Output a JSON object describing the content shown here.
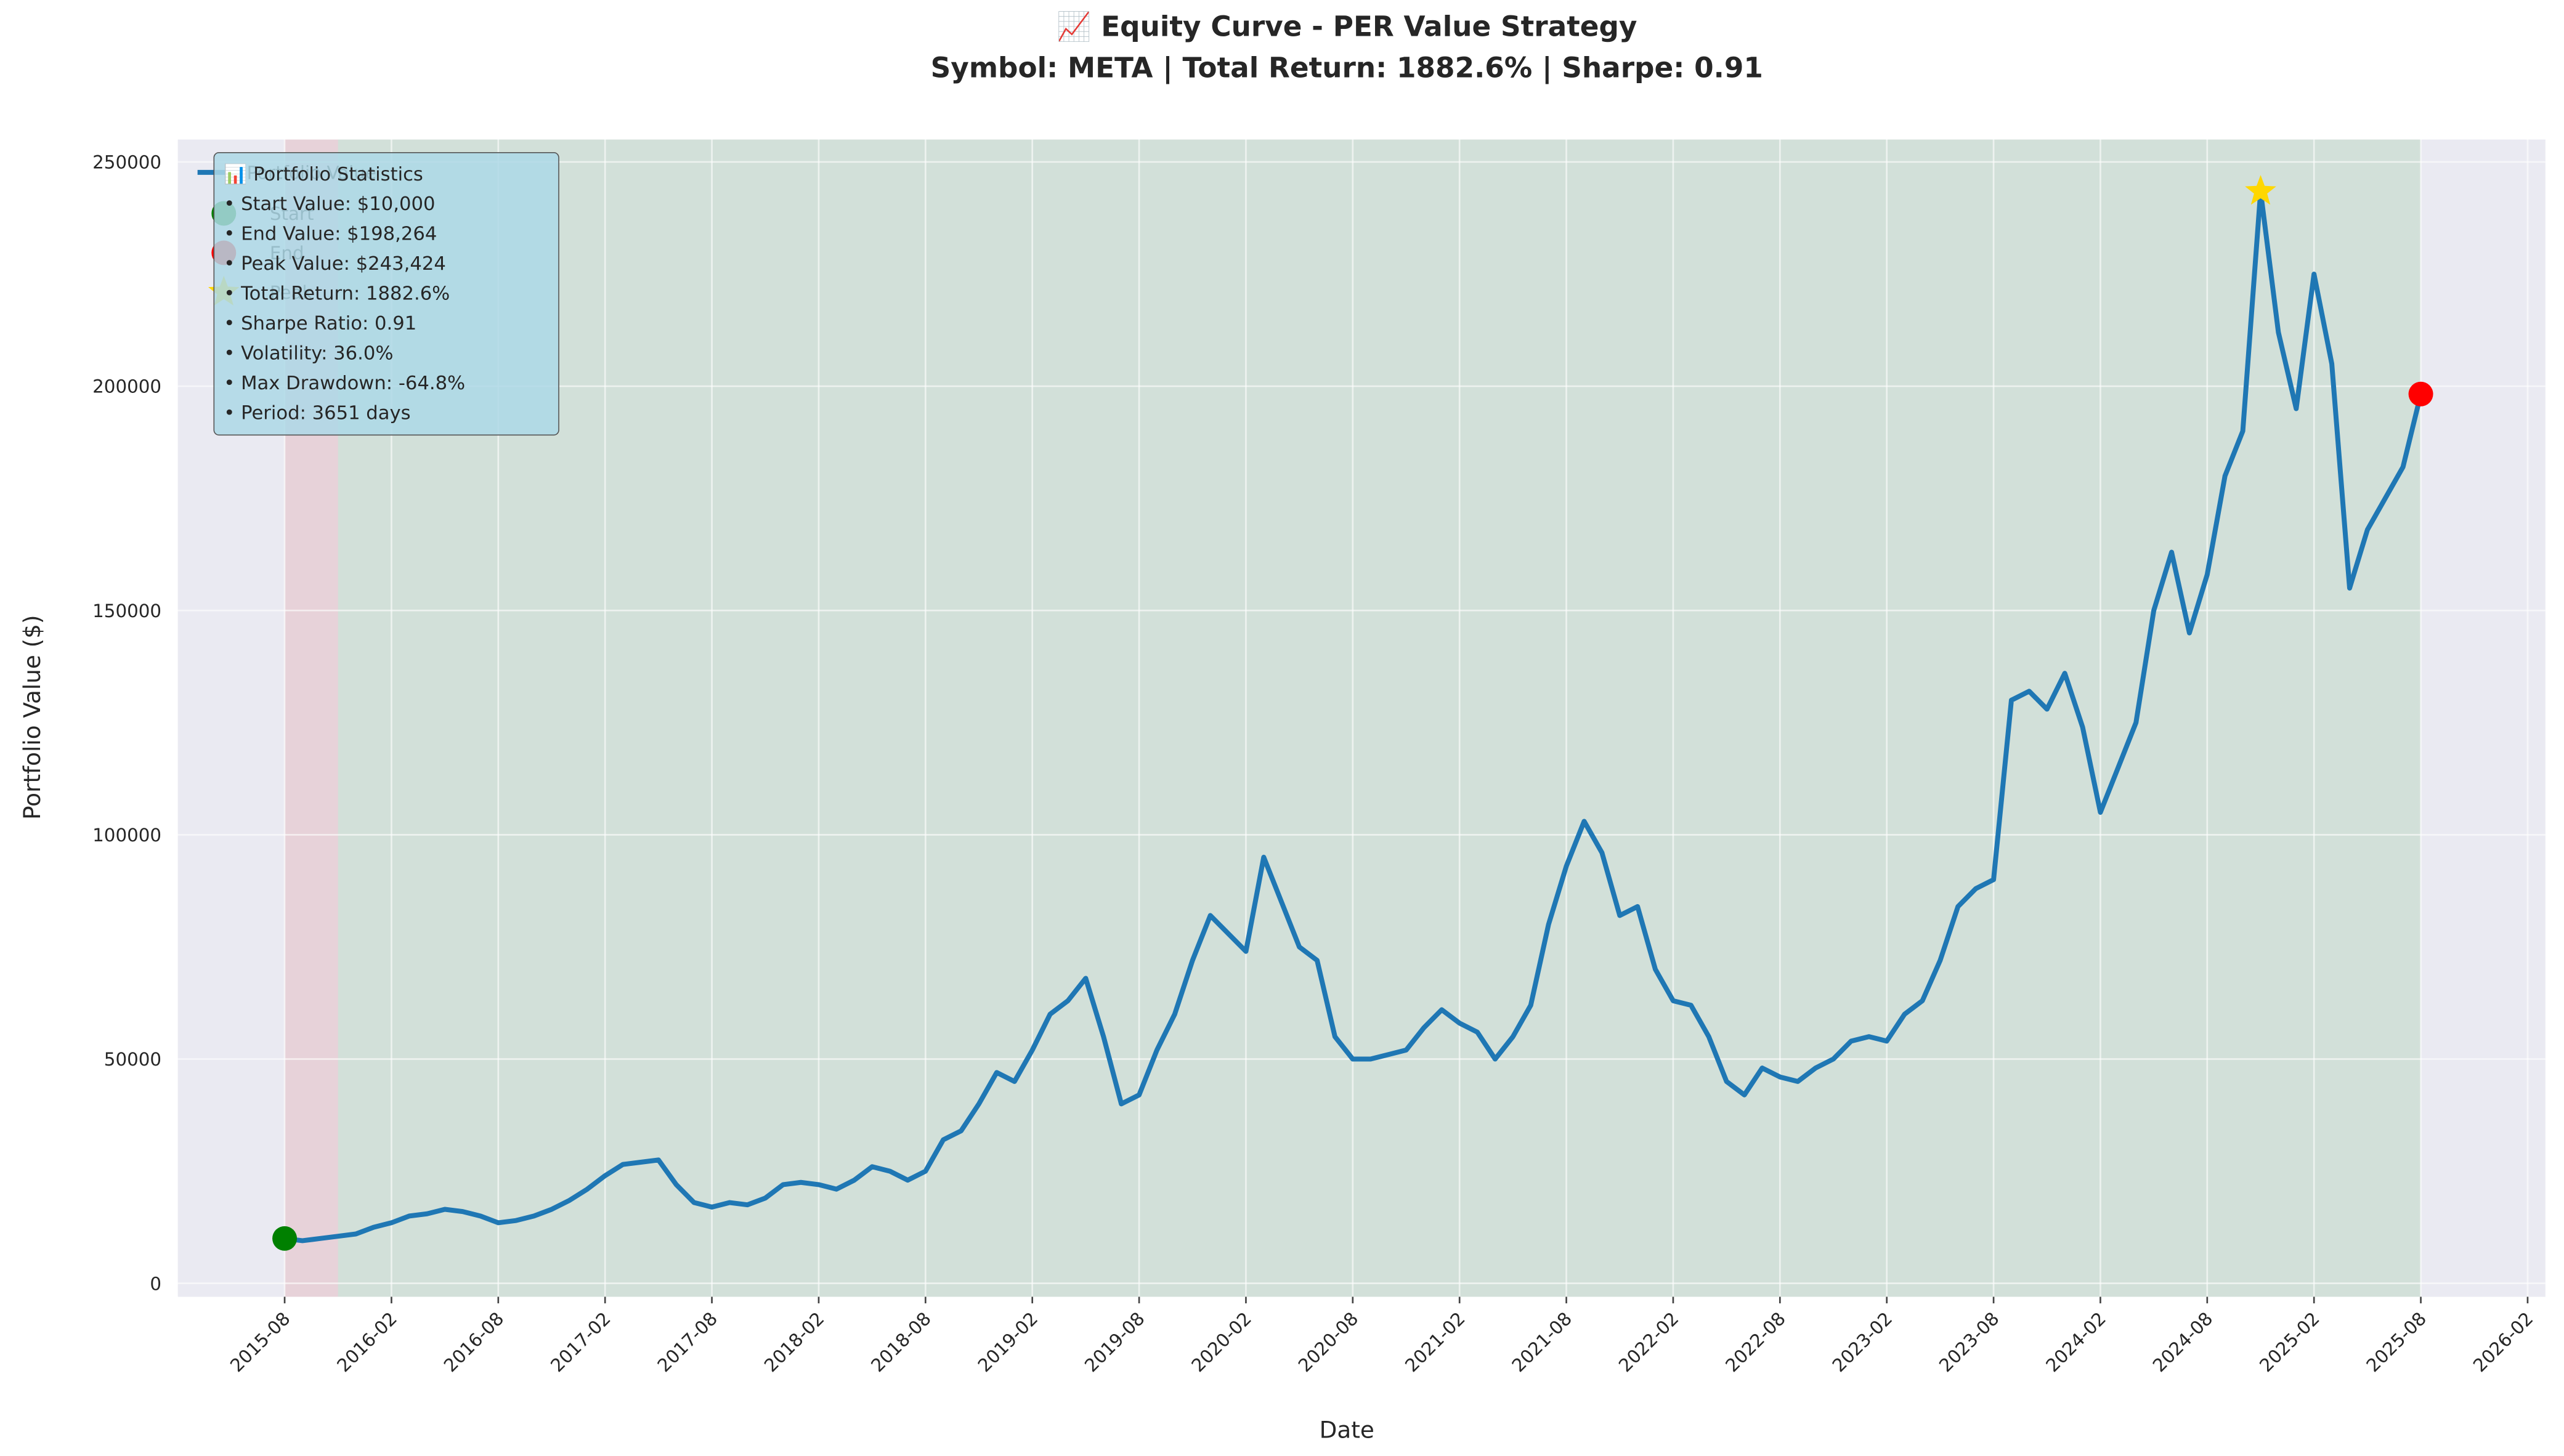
{
  "chart_data": {
    "type": "line",
    "title": "📈 Equity Curve - PER Value Strategy",
    "subtitle": "Symbol: META | Total Return: 1882.6% | Sharpe: 0.91",
    "x_label": "Date",
    "y_label": "Portfolio Value ($)",
    "x": [
      "2015-08",
      "2015-09",
      "2015-10",
      "2015-11",
      "2015-12",
      "2016-01",
      "2016-02",
      "2016-03",
      "2016-04",
      "2016-05",
      "2016-06",
      "2016-07",
      "2016-08",
      "2016-09",
      "2016-10",
      "2016-11",
      "2016-12",
      "2017-01",
      "2017-02",
      "2017-03",
      "2017-04",
      "2017-05",
      "2017-06",
      "2017-07",
      "2017-08",
      "2017-09",
      "2017-10",
      "2017-11",
      "2017-12",
      "2018-01",
      "2018-02",
      "2018-03",
      "2018-04",
      "2018-05",
      "2018-06",
      "2018-07",
      "2018-08",
      "2018-09",
      "2018-10",
      "2018-11",
      "2018-12",
      "2019-01",
      "2019-02",
      "2019-03",
      "2019-04",
      "2019-05",
      "2019-06",
      "2019-07",
      "2019-08",
      "2019-09",
      "2019-10",
      "2019-11",
      "2019-12",
      "2020-01",
      "2020-02",
      "2020-03",
      "2020-04",
      "2020-05",
      "2020-06",
      "2020-07",
      "2020-08",
      "2020-09",
      "2020-10",
      "2020-11",
      "2020-12",
      "2021-01",
      "2021-02",
      "2021-03",
      "2021-04",
      "2021-05",
      "2021-06",
      "2021-07",
      "2021-08",
      "2021-09",
      "2021-10",
      "2021-11",
      "2021-12",
      "2022-01",
      "2022-02",
      "2022-03",
      "2022-04",
      "2022-05",
      "2022-06",
      "2022-07",
      "2022-08",
      "2022-09",
      "2022-10",
      "2022-11",
      "2022-12",
      "2023-01",
      "2023-02",
      "2023-03",
      "2023-04",
      "2023-05",
      "2023-06",
      "2023-07",
      "2023-08",
      "2023-09",
      "2023-10",
      "2023-11",
      "2023-12",
      "2024-01",
      "2024-02",
      "2024-03",
      "2024-04",
      "2024-05",
      "2024-06",
      "2024-07",
      "2024-08",
      "2024-09",
      "2024-10",
      "2024-11",
      "2024-12",
      "2025-01",
      "2025-02",
      "2025-03",
      "2025-04",
      "2025-05",
      "2025-06",
      "2025-07",
      "2025-08"
    ],
    "series": [
      {
        "name": "Portfolio Value",
        "color": "#1f77b4",
        "values": [
          10000,
          9500,
          10000,
          10500,
          11000,
          12500,
          13500,
          15000,
          15500,
          16500,
          16000,
          15000,
          13500,
          14000,
          15000,
          16500,
          18500,
          21000,
          24000,
          26500,
          27000,
          27500,
          22000,
          18000,
          17000,
          18000,
          17500,
          19000,
          22000,
          22500,
          22000,
          21000,
          23000,
          26000,
          25000,
          23000,
          25000,
          32000,
          34000,
          40000,
          47000,
          45000,
          52000,
          60000,
          63000,
          68000,
          55000,
          40000,
          42000,
          52000,
          60000,
          72000,
          82000,
          78000,
          74000,
          95000,
          85000,
          75000,
          72000,
          55000,
          50000,
          50000,
          51000,
          52000,
          57000,
          61000,
          58000,
          56000,
          50000,
          55000,
          62000,
          80000,
          93000,
          103000,
          96000,
          82000,
          84000,
          70000,
          63000,
          62000,
          55000,
          45000,
          42000,
          48000,
          46000,
          45000,
          48000,
          50000,
          54000,
          55000,
          54000,
          60000,
          63000,
          72000,
          84000,
          88000,
          90000,
          130000,
          132000,
          128000,
          136000,
          124000,
          105000,
          115000,
          125000,
          150000,
          163000,
          145000,
          158000,
          180000,
          190000,
          243424,
          212000,
          195000,
          225000,
          205000,
          155000,
          168000,
          175000,
          182000,
          198264
        ]
      }
    ],
    "markers": [
      {
        "name": "Start",
        "color": "#008000",
        "shape": "circle",
        "x": "2015-08",
        "value": 10000
      },
      {
        "name": "End",
        "color": "#ff0000",
        "shape": "circle",
        "x": "2025-08",
        "value": 198264
      },
      {
        "name": "Peak",
        "color": "#ffd700",
        "shape": "star",
        "x": "2024-11",
        "value": 243424
      }
    ],
    "regions": [
      {
        "start": "2015-08",
        "end": "2015-11",
        "color": "#d62728"
      },
      {
        "start": "2015-11",
        "end": "2025-08",
        "color": "#2ca02c"
      }
    ],
    "stats_box": {
      "title": "📊 Portfolio Statistics",
      "lines": [
        "• Start Value: $10,000",
        "• End Value: $198,264",
        "• Peak Value: $243,424",
        "• Total Return: 1882.6%",
        "• Sharpe Ratio: 0.91",
        "• Volatility: 36.0%",
        "• Max Drawdown: -64.8%",
        "• Period: 3651 days"
      ]
    },
    "xlim": [
      "2015-02",
      "2026-03"
    ],
    "xticks": [
      "2015-08",
      "2016-02",
      "2016-08",
      "2017-02",
      "2017-08",
      "2018-02",
      "2018-08",
      "2019-02",
      "2019-08",
      "2020-02",
      "2020-08",
      "2021-02",
      "2021-08",
      "2022-02",
      "2022-08",
      "2023-02",
      "2023-08",
      "2024-02",
      "2024-08",
      "2025-02",
      "2025-08",
      "2026-02"
    ],
    "ylim": [
      -3000,
      255000
    ],
    "yticks": [
      0,
      50000,
      100000,
      150000,
      200000,
      250000
    ],
    "grid": true,
    "legend": "upper left"
  }
}
